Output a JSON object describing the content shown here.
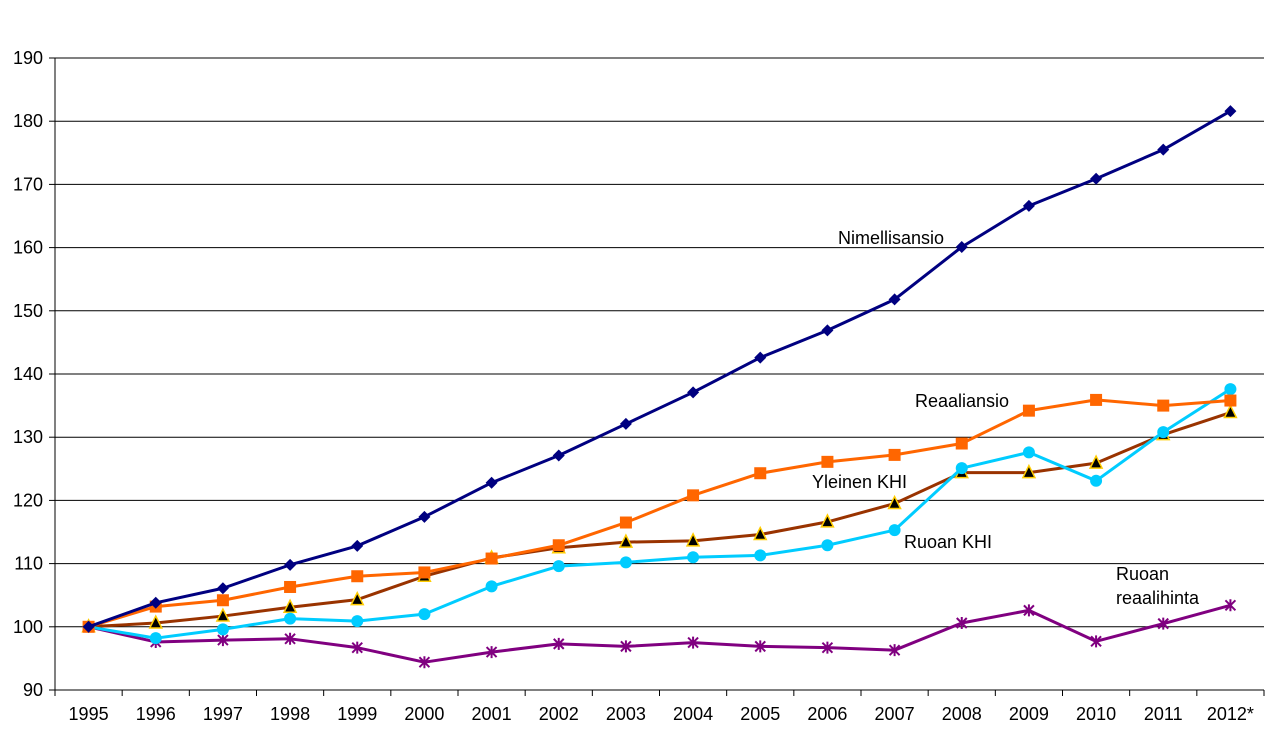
{
  "chart_data": {
    "type": "line",
    "categories": [
      "1995",
      "1996",
      "1997",
      "1998",
      "1999",
      "2000",
      "2001",
      "2002",
      "2003",
      "2004",
      "2005",
      "2006",
      "2007",
      "2008",
      "2009",
      "2010",
      "2011",
      "2012*"
    ],
    "ylim": [
      90,
      190
    ],
    "yticks": [
      90,
      100,
      110,
      120,
      130,
      140,
      150,
      160,
      170,
      180,
      190
    ],
    "grid": true,
    "series": [
      {
        "name": "Nimellisansio",
        "color": "#000080",
        "marker": "diamond",
        "values": [
          100,
          103.8,
          106.1,
          109.8,
          112.8,
          117.4,
          122.8,
          127.1,
          132.1,
          137.1,
          142.6,
          146.9,
          151.8,
          160.1,
          166.6,
          170.9,
          175.5,
          181.6
        ]
      },
      {
        "name": "Reaaliansio",
        "color": "#ff6600",
        "marker": "square",
        "values": [
          100,
          103.2,
          104.2,
          106.3,
          108.0,
          108.6,
          110.8,
          112.9,
          116.5,
          120.8,
          124.3,
          126.1,
          127.2,
          129.0,
          134.2,
          135.9,
          135.0,
          135.8
        ]
      },
      {
        "name": "Yleinen KHI",
        "color": "#993300",
        "marker": "triangle",
        "values": [
          100,
          100.6,
          101.7,
          103.1,
          104.3,
          108.0,
          110.9,
          112.5,
          113.4,
          113.6,
          114.6,
          116.6,
          119.5,
          124.4,
          124.4,
          125.9,
          130.4,
          133.9
        ]
      },
      {
        "name": "Ruoan KHI",
        "color": "#00ccff",
        "marker": "circle",
        "values": [
          100,
          98.2,
          99.6,
          101.3,
          100.9,
          102.0,
          106.4,
          109.6,
          110.2,
          111.0,
          111.3,
          112.9,
          115.3,
          125.1,
          127.6,
          123.1,
          130.8,
          137.6
        ]
      },
      {
        "name": "Ruoan reaalihinta",
        "color": "#800080",
        "marker": "star",
        "values": [
          100,
          97.6,
          97.9,
          98.1,
          96.7,
          94.4,
          96.0,
          97.3,
          96.9,
          97.5,
          96.9,
          96.7,
          96.3,
          100.6,
          102.6,
          97.7,
          100.5,
          103.4
        ]
      }
    ],
    "annotations": [
      {
        "text": "Nimellisansio"
      },
      {
        "text": "Reaaliansio"
      },
      {
        "text": "Yleinen KHI"
      },
      {
        "text": "Ruoan KHI"
      },
      {
        "lines": [
          "Ruoan",
          "reaalihinta"
        ]
      }
    ]
  }
}
